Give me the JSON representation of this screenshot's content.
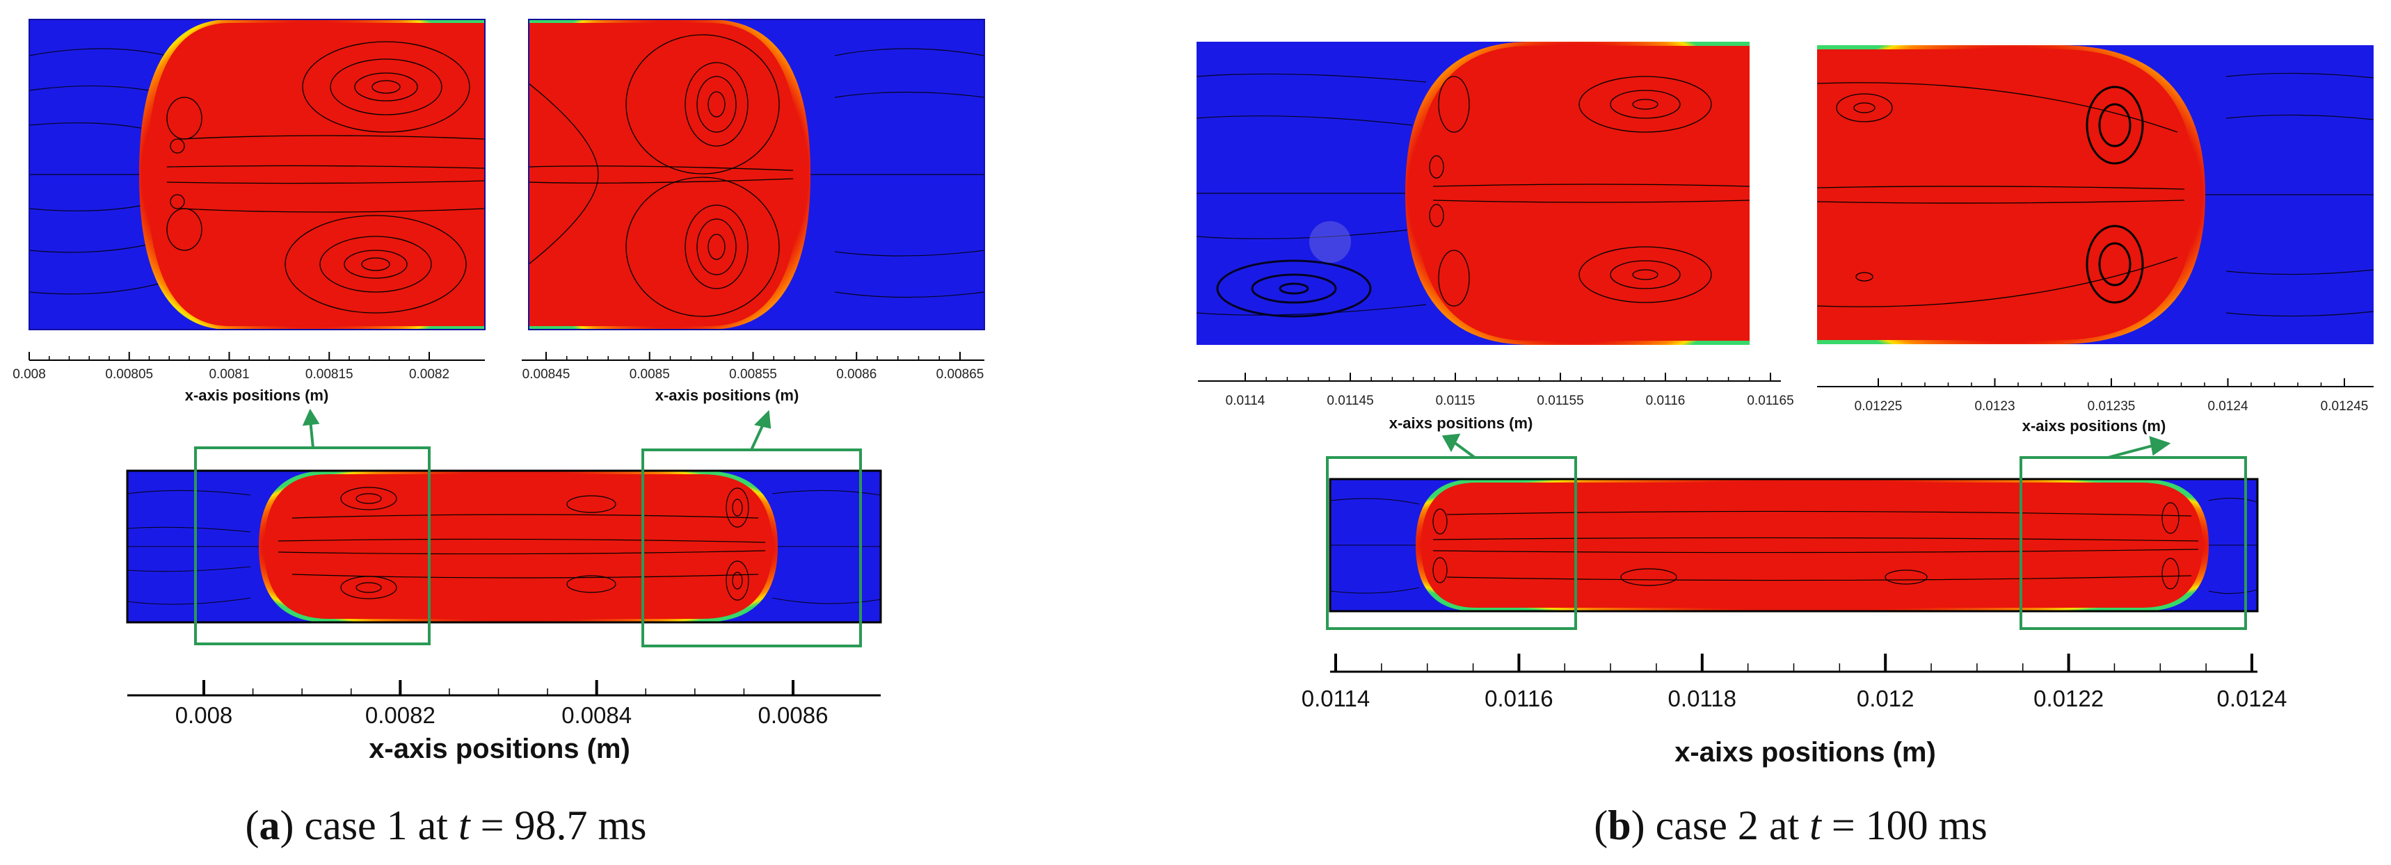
{
  "panels": [
    {
      "id": "a",
      "caption": {
        "letter": "a",
        "pre": "case 1 at",
        "var": "t",
        "post": "= 98.7 ms"
      },
      "zoom_left": {
        "axis_title": "x-axis positions (m)",
        "ticks": [
          "0.008",
          "0.00805",
          "0.0081",
          "0.00815",
          "0.0082"
        ]
      },
      "zoom_right": {
        "axis_title": "x-axis positions (m)",
        "ticks": [
          "0.00845",
          "0.0085",
          "0.00855",
          "0.0086",
          "0.00865"
        ]
      },
      "full": {
        "axis_title": "x-axis positions (m)",
        "ticks": [
          "0.008",
          "0.0082",
          "0.0084",
          "0.0086"
        ]
      }
    },
    {
      "id": "b",
      "caption": {
        "letter": "b",
        "pre": "case 2 at",
        "var": "t",
        "post": "= 100 ms"
      },
      "zoom_left": {
        "axis_title": "x-aixs positions (m)",
        "ticks": [
          "0.0114",
          "0.01145",
          "0.0115",
          "0.01155",
          "0.0116",
          "0.01165"
        ]
      },
      "zoom_right": {
        "axis_title": "x-aixs positions (m)",
        "ticks": [
          "0.01225",
          "0.0123",
          "0.01235",
          "0.0124",
          "0.01245"
        ]
      },
      "full": {
        "axis_title": "x-aixs positions (m)",
        "ticks": [
          "0.0114",
          "0.0116",
          "0.0118",
          "0.012",
          "0.0122",
          "0.0124"
        ]
      }
    }
  ],
  "colors": {
    "liquid": "#1a1ae6",
    "droplet": "#ee1c10",
    "interface": "#3fe05a",
    "streamline": "#000000",
    "highlight_box": "#2a9a55"
  }
}
